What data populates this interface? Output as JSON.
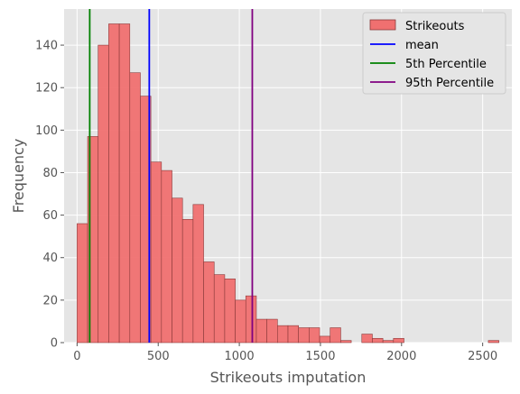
{
  "chart_data": {
    "type": "histogram",
    "title": "",
    "xlabel": "Strikeouts imputation",
    "ylabel": "Frequency",
    "xlim": [
      -80,
      2680
    ],
    "ylim": [
      0,
      157
    ],
    "xticks": [
      0,
      500,
      1000,
      1500,
      2000,
      2500
    ],
    "yticks": [
      0,
      20,
      40,
      60,
      80,
      100,
      120,
      140
    ],
    "grid": true,
    "legend_position": "upper right",
    "bin_start": 0,
    "bin_width": 65,
    "series": [
      {
        "name": "Strikeouts",
        "kind": "histogram",
        "color": "#f07070",
        "edge_color": "#8b3a3a",
        "values": [
          56,
          97,
          140,
          150,
          150,
          127,
          116,
          85,
          81,
          68,
          58,
          65,
          38,
          32,
          30,
          20,
          22,
          11,
          11,
          8,
          8,
          7,
          7,
          3,
          7,
          1,
          0,
          4,
          2,
          1,
          2,
          0,
          0,
          0,
          0,
          0,
          0,
          0,
          0,
          1
        ]
      },
      {
        "name": "mean",
        "kind": "vline",
        "x": 445,
        "color": "#0000ff"
      },
      {
        "name": "5th Percentile",
        "kind": "vline",
        "x": 78,
        "color": "#008000"
      },
      {
        "name": "95th Percentile",
        "kind": "vline",
        "x": 1080,
        "color": "#800080"
      }
    ]
  }
}
